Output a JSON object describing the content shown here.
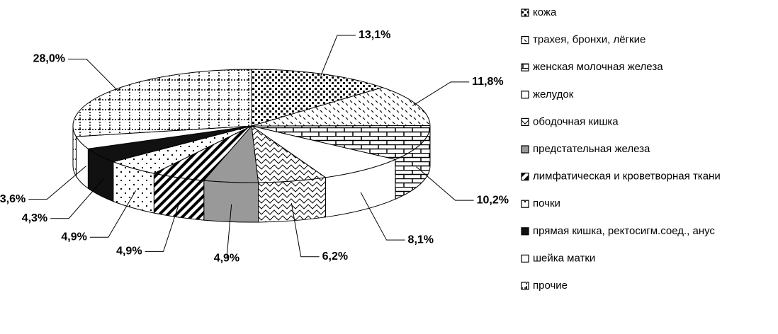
{
  "chart_data": {
    "type": "pie",
    "categories": [
      "кожа",
      "трахея, бронхи, лёгкие",
      "женская молочная железа",
      "желудок",
      "ободочная кишка",
      "предстательная железа",
      "лимфатическая и кроветворная ткани",
      "почки",
      "прямая кишка, ректосигм.соед., анус",
      "шейка матки",
      "прочие"
    ],
    "values": [
      13.1,
      11.8,
      10.2,
      8.1,
      6.2,
      4.9,
      4.9,
      4.9,
      4.3,
      3.6,
      28.0
    ],
    "value_labels": [
      "13,1%",
      "11,8%",
      "10,2%",
      "8,1%",
      "6,2%",
      "4,9%",
      "4,9%",
      "4,9%",
      "4,3%",
      "3,6%",
      "28,0%"
    ],
    "colors": [
      "#ffffff",
      "#ffffff",
      "#ffffff",
      "#ffffff",
      "#ffffff",
      "#999999",
      "#ffffff",
      "#ffffff",
      "#111111",
      "#ffffff",
      "#ffffff"
    ],
    "legend": "right"
  }
}
